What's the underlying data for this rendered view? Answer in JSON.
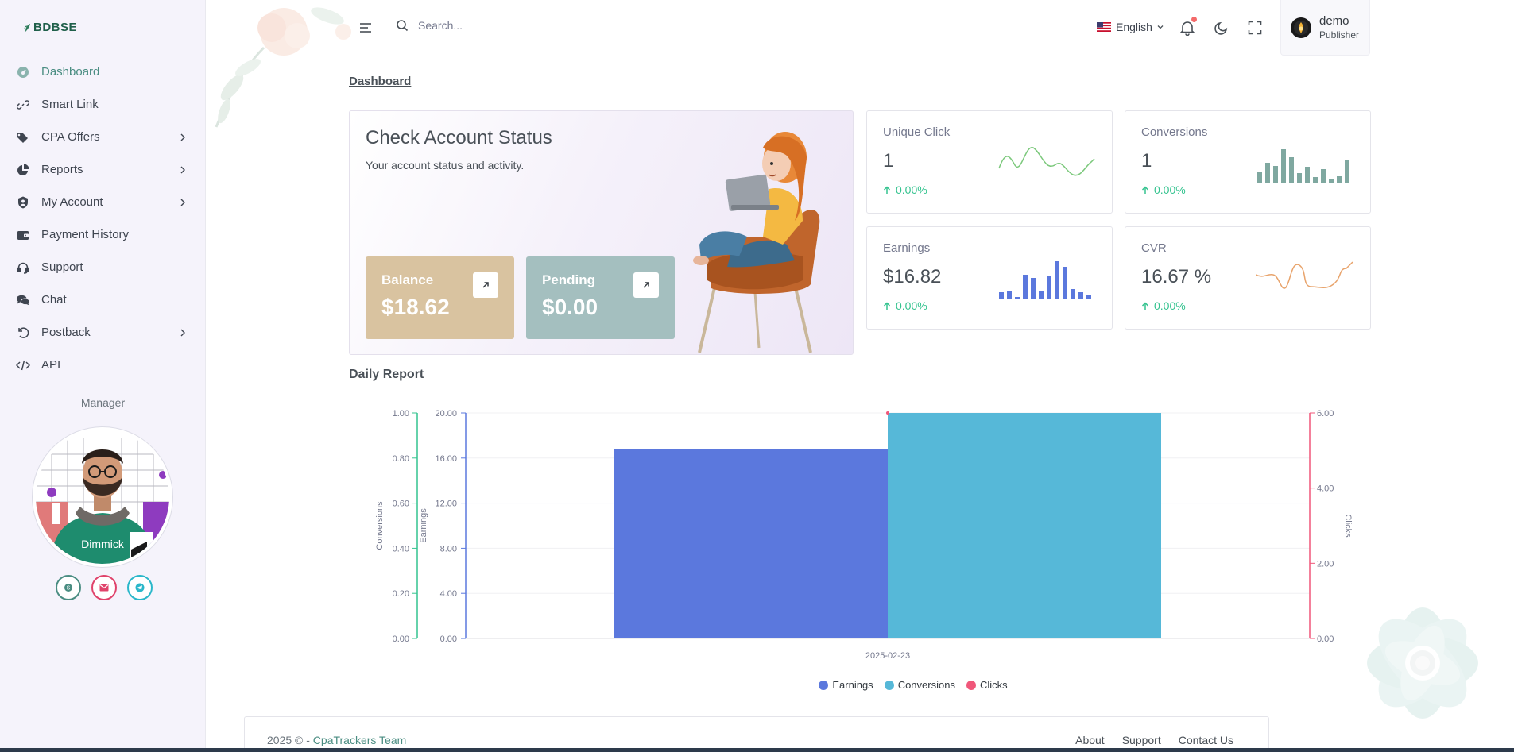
{
  "brand": {
    "logo_text": "BDBSE"
  },
  "sidebar": {
    "items": [
      {
        "label": "Dashboard",
        "icon": "dashboard-icon",
        "active": true,
        "has_submenu": false
      },
      {
        "label": "Smart Link",
        "icon": "link-icon",
        "active": false,
        "has_submenu": false
      },
      {
        "label": "CPA Offers",
        "icon": "tags-icon",
        "active": false,
        "has_submenu": true
      },
      {
        "label": "Reports",
        "icon": "pie-chart-icon",
        "active": false,
        "has_submenu": true
      },
      {
        "label": "My Account",
        "icon": "user-shield-icon",
        "active": false,
        "has_submenu": true
      },
      {
        "label": "Payment History",
        "icon": "wallet-icon",
        "active": false,
        "has_submenu": false
      },
      {
        "label": "Support",
        "icon": "headset-icon",
        "active": false,
        "has_submenu": false
      },
      {
        "label": "Chat",
        "icon": "chat-icon",
        "active": false,
        "has_submenu": false
      },
      {
        "label": "Postback",
        "icon": "undo-icon",
        "active": false,
        "has_submenu": true
      },
      {
        "label": "API",
        "icon": "code-icon",
        "active": false,
        "has_submenu": false
      }
    ],
    "manager": {
      "title": "Manager",
      "name": "Dimmick",
      "contacts": [
        {
          "icon": "skype-icon",
          "color": "#4a8d82"
        },
        {
          "icon": "email-icon",
          "color": "#e0436b"
        },
        {
          "icon": "telegram-icon",
          "color": "#2ab7ca"
        }
      ]
    }
  },
  "topbar": {
    "search_placeholder": "Search...",
    "language": "English",
    "user": {
      "name": "demo",
      "role": "Publisher"
    }
  },
  "breadcrumb": "Dashboard",
  "account_status": {
    "title": "Check Account Status",
    "subtitle": "Your account status and activity.",
    "balance": {
      "label": "Balance",
      "value": "$18.62",
      "color": "#d9c3a0"
    },
    "pending": {
      "label": "Pending",
      "value": "$0.00",
      "color": "#a4bfbf"
    }
  },
  "stats": [
    {
      "label": "Unique Click",
      "value": "1",
      "change": "0.00%",
      "spark": "line",
      "color": "#7bc87b"
    },
    {
      "label": "Conversions",
      "value": "1",
      "change": "0.00%",
      "spark": "bar",
      "color": "#7fa8a0"
    },
    {
      "label": "Earnings",
      "value": "$16.82",
      "change": "0.00%",
      "spark": "bar",
      "color": "#5b78dd"
    },
    {
      "label": "CVR",
      "value": "16.67 %",
      "change": "0.00%",
      "spark": "line",
      "color": "#e8a36b"
    }
  ],
  "daily_report": {
    "title": "Daily Report"
  },
  "chart_data": {
    "type": "bar",
    "categories": [
      "2025-02-23"
    ],
    "series": [
      {
        "name": "Earnings",
        "values": [
          16.82
        ],
        "color": "#5b78dd",
        "axis": "Earnings"
      },
      {
        "name": "Conversions",
        "values": [
          1
        ],
        "color": "#56b8d8",
        "axis": "Conversions"
      },
      {
        "name": "Clicks",
        "values": [
          6
        ],
        "color": "#f0577a",
        "axis": "Clicks"
      }
    ],
    "axes": {
      "conversions": {
        "label": "Conversions",
        "range": [
          0,
          1
        ],
        "ticks": [
          "0.00",
          "0.20",
          "0.40",
          "0.60",
          "0.80",
          "1.00"
        ],
        "color": "#34c38f"
      },
      "earnings": {
        "label": "Earnings",
        "range": [
          0,
          20
        ],
        "ticks": [
          "0.00",
          "4.00",
          "8.00",
          "12.00",
          "16.00",
          "20.00"
        ],
        "color": "#5b78dd"
      },
      "clicks": {
        "label": "Clicks",
        "range": [
          0,
          6
        ],
        "ticks": [
          "0.00",
          "2.00",
          "4.00",
          "6.00"
        ],
        "color": "#f0577a"
      }
    },
    "legend_position": "bottom-center",
    "grid": true
  },
  "footer": {
    "copyright": "2025 © - ",
    "team": "CpaTrackers Team",
    "links": [
      "About",
      "Support",
      "Contact Us"
    ]
  }
}
